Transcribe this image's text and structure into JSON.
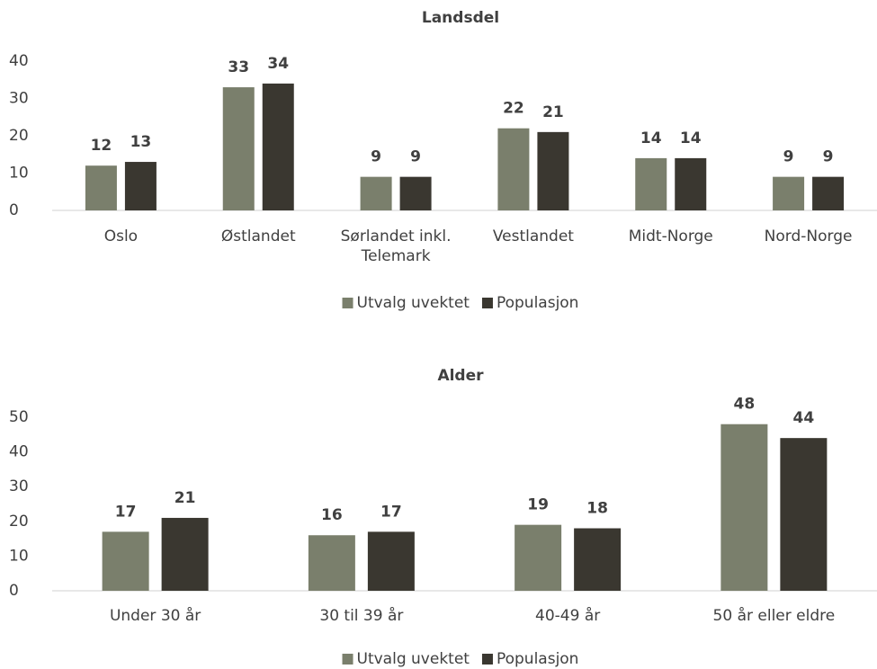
{
  "chart_data": [
    {
      "type": "bar",
      "title": "Landsdel",
      "categories": [
        "Oslo",
        "Østlandet",
        "Sørlandet inkl. Telemark",
        "Vestlandet",
        "Midt-Norge",
        "Nord-Norge"
      ],
      "series": [
        {
          "name": "Utvalg uvektet",
          "color": "#7a7f6c",
          "values": [
            12,
            33,
            9,
            22,
            14,
            9
          ]
        },
        {
          "name": "Populasjon",
          "color": "#3a3730",
          "values": [
            13,
            34,
            9,
            21,
            14,
            9
          ]
        }
      ],
      "ylim": [
        0,
        40
      ],
      "yticks": [
        0,
        10,
        20,
        30,
        40
      ],
      "grid": false,
      "legend": "bottom"
    },
    {
      "type": "bar",
      "title": "Alder",
      "categories": [
        "Under 30 år",
        "30 til 39 år",
        "40-49 år",
        "50 år eller eldre"
      ],
      "series": [
        {
          "name": "Utvalg uvektet",
          "color": "#7a7f6c",
          "values": [
            17,
            16,
            19,
            48
          ]
        },
        {
          "name": "Populasjon",
          "color": "#3a3730",
          "values": [
            21,
            17,
            18,
            44
          ]
        }
      ],
      "ylim": [
        0,
        50
      ],
      "yticks": [
        0,
        10,
        20,
        30,
        40,
        50
      ],
      "grid": false,
      "legend": "bottom"
    }
  ]
}
